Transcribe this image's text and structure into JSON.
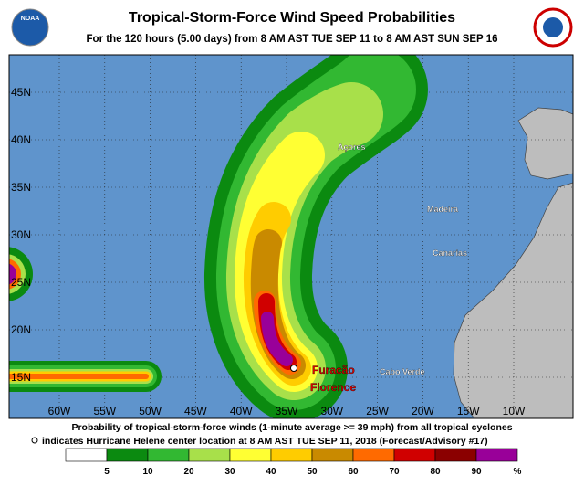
{
  "header": {
    "title": "Tropical-Storm-Force Wind Speed Probabilities",
    "subtitle": "For the 120 hours (5.00 days) from 8 AM AST TUE SEP 11 to 8 AM AST SUN SEP 16",
    "left_logo": "NOAA",
    "right_logo": "NATIONAL WEATHER SERVICE"
  },
  "map": {
    "latitude_labels": [
      "45N",
      "40N",
      "35N",
      "30N",
      "25N",
      "20N",
      "15N"
    ],
    "longitude_labels": [
      "60W",
      "55W",
      "50W",
      "45W",
      "40W",
      "35W",
      "30W",
      "25W",
      "20W",
      "15W",
      "10W"
    ],
    "places": [
      "Açores",
      "Madeira",
      "Canarias",
      "Cabo Verde"
    ],
    "storm_label": [
      "Furacão",
      "Florence"
    ]
  },
  "footer": {
    "line1": "Probability of tropical-storm-force winds (1-minute average >= 39 mph) from all tropical cyclones",
    "line2": "indicates Hurricane Helene center location at 8 AM AST TUE SEP 11, 2018 (Forecast/Advisory #17)"
  },
  "legend": {
    "labels": [
      "5",
      "10",
      "20",
      "30",
      "40",
      "50",
      "60",
      "70",
      "80",
      "90",
      "%"
    ]
  }
}
